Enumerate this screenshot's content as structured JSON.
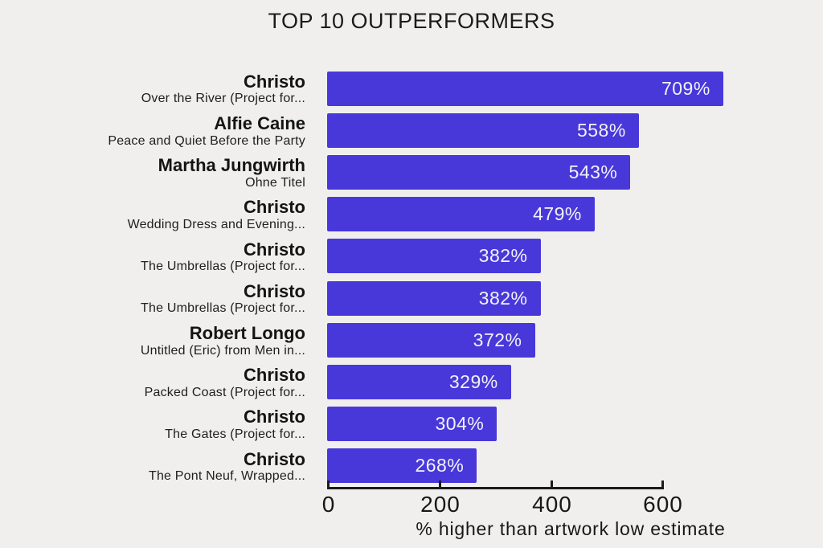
{
  "chart_data": {
    "type": "bar",
    "orientation": "horizontal",
    "title": "TOP 10 OUTPERFORMERS",
    "xlabel": "% higher than artwork low estimate",
    "xlim": [
      0,
      600
    ],
    "xticks": [
      0,
      200,
      400,
      600
    ],
    "xtick_labels": [
      "0",
      "200",
      "400",
      "600"
    ],
    "grid": false,
    "legend": false,
    "bars": [
      {
        "artist": "Christo",
        "artwork": "Over the River (Project for...",
        "value": 709,
        "value_label": "709%"
      },
      {
        "artist": "Alfie Caine",
        "artwork": "Peace and Quiet Before the Party",
        "value": 558,
        "value_label": "558%"
      },
      {
        "artist": "Martha Jungwirth",
        "artwork": "Ohne Titel",
        "value": 543,
        "value_label": "543%"
      },
      {
        "artist": "Christo",
        "artwork": "Wedding Dress and Evening...",
        "value": 479,
        "value_label": "479%"
      },
      {
        "artist": "Christo",
        "artwork": "The Umbrellas (Project for...",
        "value": 382,
        "value_label": "382%"
      },
      {
        "artist": "Christo",
        "artwork": "The Umbrellas (Project for...",
        "value": 382,
        "value_label": "382%"
      },
      {
        "artist": "Robert Longo",
        "artwork": "Untitled (Eric) from Men in...",
        "value": 372,
        "value_label": "372%"
      },
      {
        "artist": "Christo",
        "artwork": "Packed Coast (Project for...",
        "value": 329,
        "value_label": "329%"
      },
      {
        "artist": "Christo",
        "artwork": "The Gates (Project for...",
        "value": 304,
        "value_label": "304%"
      },
      {
        "artist": "Christo",
        "artwork": "The Pont Neuf, Wrapped...",
        "value": 268,
        "value_label": "268%"
      }
    ],
    "colors": {
      "bar": "#4838da",
      "background": "#f0efee",
      "text": "#1b1b1b",
      "bar_label": "#f2f1f8"
    }
  }
}
